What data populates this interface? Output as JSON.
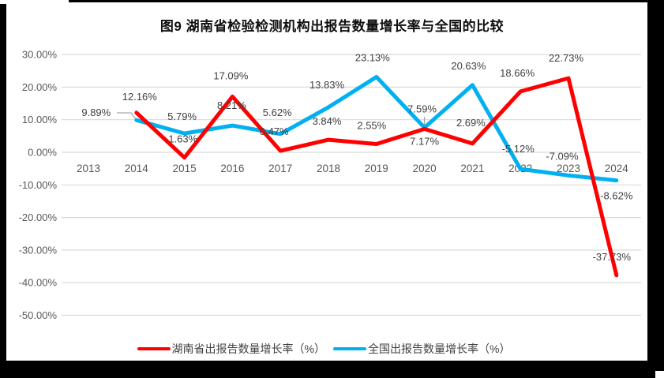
{
  "chart_data": {
    "type": "line",
    "title": "图9 湖南省检验检测机构出报告数量增长率与全国的比较",
    "categories": [
      "2013",
      "2014",
      "2015",
      "2016",
      "2017",
      "2018",
      "2019",
      "2020",
      "2021",
      "2022",
      "2023",
      "2024"
    ],
    "series": [
      {
        "name": "湖南省出报告数量增长率（%）",
        "color": "#FF0000",
        "values": [
          null,
          12.16,
          -1.63,
          17.09,
          0.47,
          3.84,
          2.55,
          7.17,
          2.69,
          18.66,
          22.73,
          -37.73
        ],
        "labels": [
          "",
          "12.16%",
          "-1.63%",
          "17.09%",
          "0.47%",
          "3.84%",
          "2.55%",
          "7.17%",
          "2.69%",
          "18.66%",
          "22.73%",
          "-37.73%"
        ]
      },
      {
        "name": "全国出报告数量增长率（%）",
        "color": "#00B0F0",
        "values": [
          null,
          9.89,
          5.79,
          8.21,
          5.62,
          13.83,
          23.13,
          7.59,
          20.63,
          -5.12,
          -7.09,
          -8.62
        ],
        "labels": [
          "",
          "9.89%",
          "5.79%",
          "8.21%",
          "5.62%",
          "13.83%",
          "23.13%",
          "7.59%",
          "20.63%",
          "-5.12%",
          "-7.09%",
          "-8.62%"
        ]
      }
    ],
    "y_axis": {
      "min": -50,
      "max": 30,
      "tick_values": [
        30,
        20,
        10,
        0,
        -10,
        -20,
        -30,
        -40,
        -50
      ],
      "tick_labels": [
        "30.00%",
        "20.00%",
        "10.00%",
        "0.00%",
        "-10.00%",
        "-20.00%",
        "-30.00%",
        "-40.00%",
        "-50.00%"
      ]
    },
    "grid": true,
    "legend_position": "bottom",
    "colors": {
      "gridline": "#D9D9D9",
      "axis_text": "#595959",
      "data_label": "#404040",
      "leader_line": "#A6A6A6",
      "title_text": "#0f0f0f"
    }
  }
}
